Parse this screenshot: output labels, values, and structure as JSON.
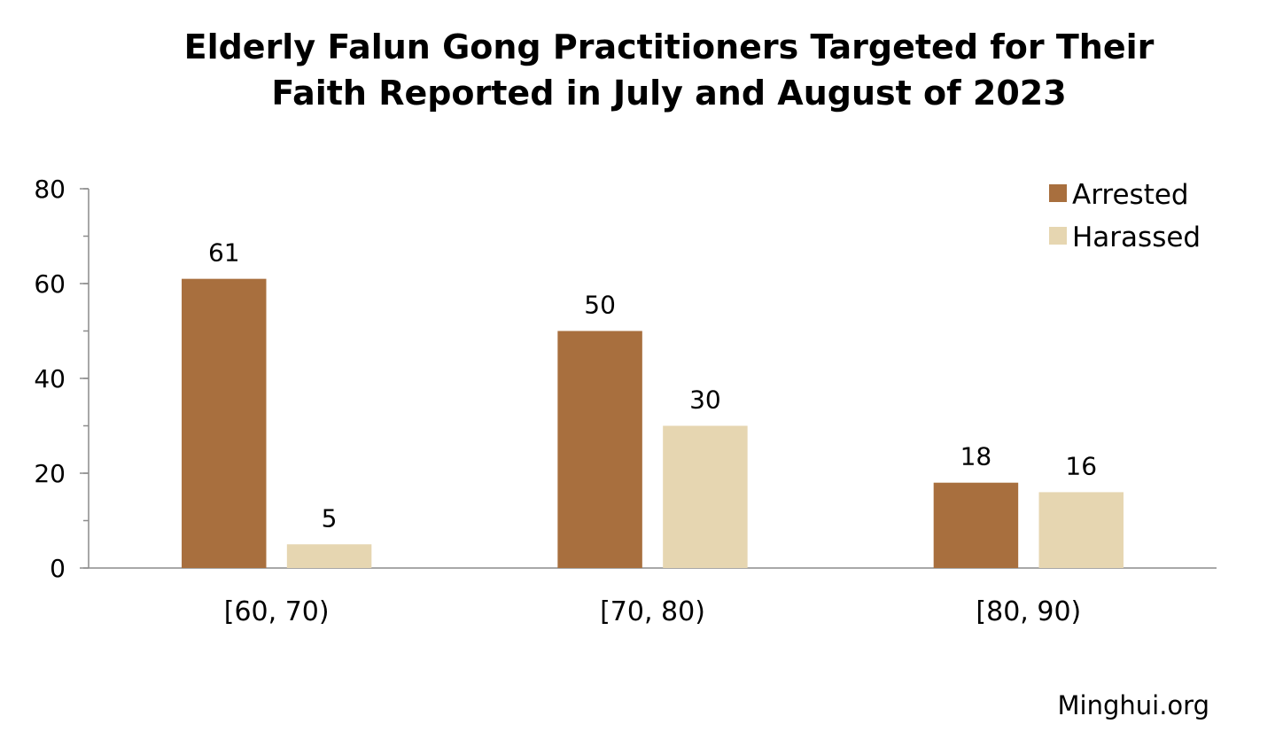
{
  "chart_data": {
    "type": "bar",
    "title_lines": [
      "Elderly Falun Gong Practitioners Targeted for Their",
      "Faith Reported in July and August of 2023"
    ],
    "categories": [
      "[60, 70)",
      "[70, 80)",
      "[80, 90)"
    ],
    "series": [
      {
        "name": "Arrested",
        "values": [
          61,
          50,
          18
        ],
        "color": "#A86F3E"
      },
      {
        "name": "Harassed",
        "values": [
          5,
          30,
          16
        ],
        "color": "#E6D6B1"
      }
    ],
    "ylim": [
      0,
      80
    ],
    "yticks": [
      0,
      20,
      40,
      60,
      80
    ],
    "y_minor_step": 10,
    "grid": false,
    "legend_position": "top-right",
    "source": "Minghui.org"
  }
}
